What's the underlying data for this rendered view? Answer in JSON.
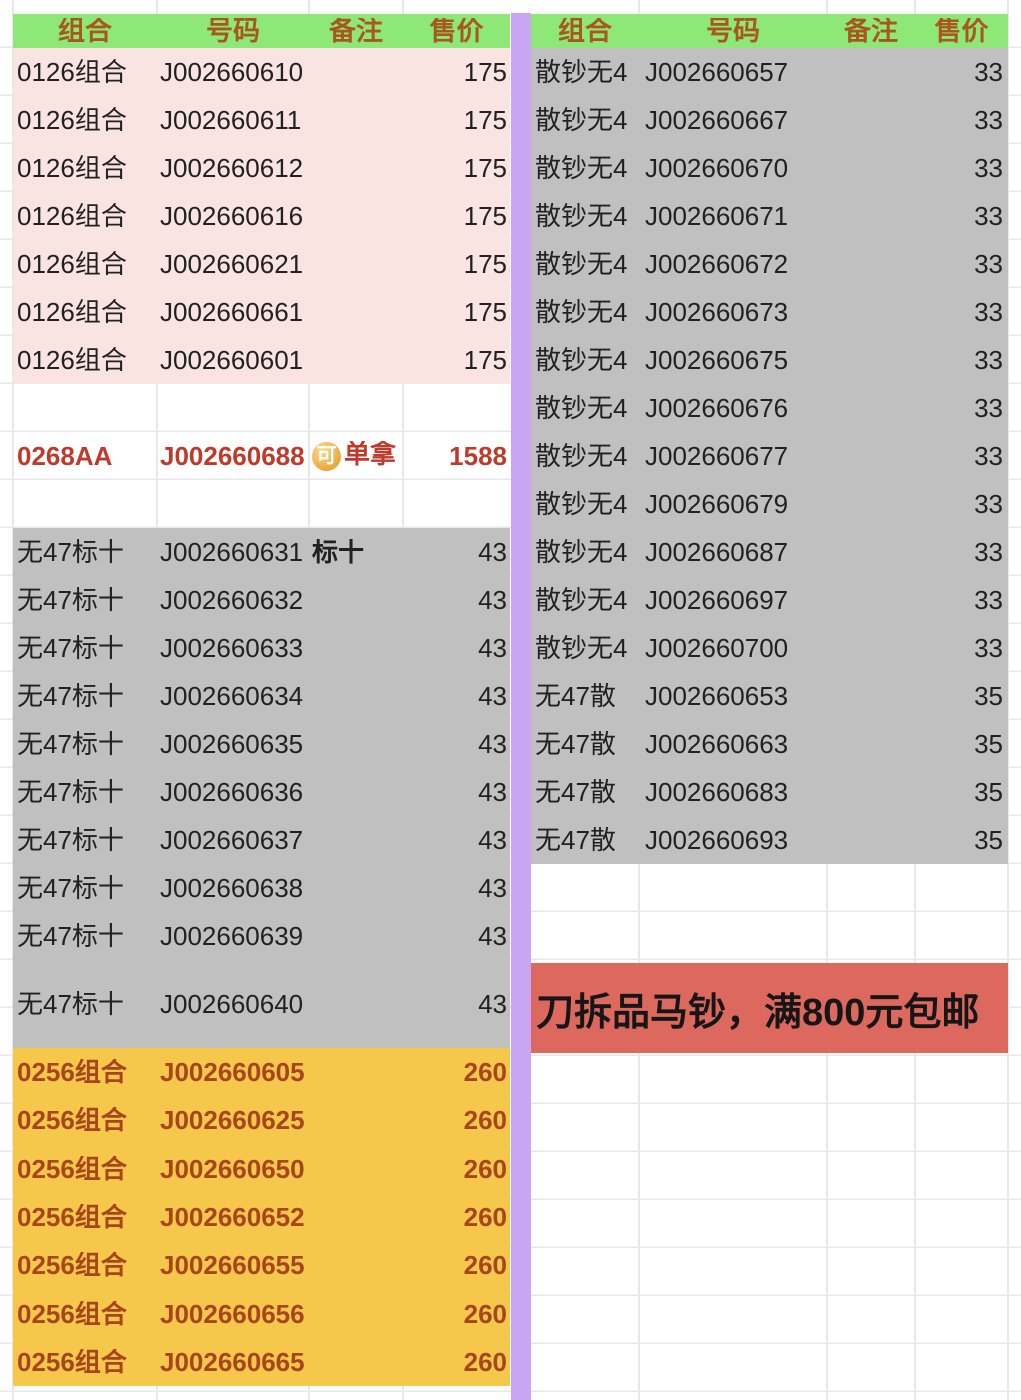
{
  "colors": {
    "green_header": "#8ee878",
    "header_text": "#a8581c",
    "pink_bg": "#f9e4e2",
    "gray_bg": "#c1c0c0",
    "orange_bg": "#f5c74b",
    "orange_text": "#a9451d",
    "featured_red": "#bf3a2b",
    "banner_bg": "#dc685e",
    "divider_purple": "#c9a5f3",
    "body_text": "#212121",
    "gridline": "#e8e8e8"
  },
  "left_table": {
    "headers": [
      "组合",
      "号码",
      "备注",
      "售价"
    ],
    "pink_rows": [
      {
        "combo": "0126组合",
        "code": "J002660610",
        "note": "",
        "price": "175"
      },
      {
        "combo": "0126组合",
        "code": "J002660611",
        "note": "",
        "price": "175"
      },
      {
        "combo": "0126组合",
        "code": "J002660612",
        "note": "",
        "price": "175"
      },
      {
        "combo": "0126组合",
        "code": "J002660616",
        "note": "",
        "price": "175"
      },
      {
        "combo": "0126组合",
        "code": "J002660621",
        "note": "",
        "price": "175"
      },
      {
        "combo": "0126组合",
        "code": "J002660661",
        "note": "",
        "price": "175"
      },
      {
        "combo": "0126组合",
        "code": "J002660601",
        "note": "",
        "price": "175"
      }
    ],
    "featured_rows": [
      {
        "combo": "0268AA",
        "code": "J002660688",
        "badge": "可",
        "note": "单拿",
        "price": "1588"
      }
    ],
    "gray_rows": [
      {
        "combo": "无47标十",
        "code": "J002660631",
        "note": "标十",
        "price": "43"
      },
      {
        "combo": "无47标十",
        "code": "J002660632",
        "note": "",
        "price": "43"
      },
      {
        "combo": "无47标十",
        "code": "J002660633",
        "note": "",
        "price": "43"
      },
      {
        "combo": "无47标十",
        "code": "J002660634",
        "note": "",
        "price": "43"
      },
      {
        "combo": "无47标十",
        "code": "J002660635",
        "note": "",
        "price": "43"
      },
      {
        "combo": "无47标十",
        "code": "J002660636",
        "note": "",
        "price": "43"
      },
      {
        "combo": "无47标十",
        "code": "J002660637",
        "note": "",
        "price": "43"
      },
      {
        "combo": "无47标十",
        "code": "J002660638",
        "note": "",
        "price": "43"
      },
      {
        "combo": "无47标十",
        "code": "J002660639",
        "note": "",
        "price": "43"
      },
      {
        "combo": "无47标十",
        "code": "J002660640",
        "note": "",
        "price": "43",
        "tall": true
      }
    ],
    "orange_rows": [
      {
        "combo": "0256组合",
        "code": "J002660605",
        "note": "",
        "price": "260"
      },
      {
        "combo": "0256组合",
        "code": "J002660625",
        "note": "",
        "price": "260"
      },
      {
        "combo": "0256组合",
        "code": "J002660650",
        "note": "",
        "price": "260"
      },
      {
        "combo": "0256组合",
        "code": "J002660652",
        "note": "",
        "price": "260"
      },
      {
        "combo": "0256组合",
        "code": "J002660655",
        "note": "",
        "price": "260"
      },
      {
        "combo": "0256组合",
        "code": "J002660656",
        "note": "",
        "price": "260"
      },
      {
        "combo": "0256组合",
        "code": "J002660665",
        "note": "",
        "price": "260"
      }
    ]
  },
  "right_table": {
    "headers": [
      "组合",
      "号码",
      "备注",
      "售价"
    ],
    "gray_rows": [
      {
        "combo": "散钞无4",
        "code": "J002660657",
        "note": "",
        "price": "33"
      },
      {
        "combo": "散钞无4",
        "code": "J002660667",
        "note": "",
        "price": "33"
      },
      {
        "combo": "散钞无4",
        "code": "J002660670",
        "note": "",
        "price": "33"
      },
      {
        "combo": "散钞无4",
        "code": "J002660671",
        "note": "",
        "price": "33"
      },
      {
        "combo": "散钞无4",
        "code": "J002660672",
        "note": "",
        "price": "33"
      },
      {
        "combo": "散钞无4",
        "code": "J002660673",
        "note": "",
        "price": "33"
      },
      {
        "combo": "散钞无4",
        "code": "J002660675",
        "note": "",
        "price": "33"
      },
      {
        "combo": "散钞无4",
        "code": "J002660676",
        "note": "",
        "price": "33"
      },
      {
        "combo": "散钞无4",
        "code": "J002660677",
        "note": "",
        "price": "33"
      },
      {
        "combo": "散钞无4",
        "code": "J002660679",
        "note": "",
        "price": "33"
      },
      {
        "combo": "散钞无4",
        "code": "J002660687",
        "note": "",
        "price": "33"
      },
      {
        "combo": "散钞无4",
        "code": "J002660697",
        "note": "",
        "price": "33"
      },
      {
        "combo": "散钞无4",
        "code": "J002660700",
        "note": "",
        "price": "33"
      },
      {
        "combo": "无47散",
        "code": "J002660653",
        "note": "",
        "price": "35"
      },
      {
        "combo": "无47散",
        "code": "J002660663",
        "note": "",
        "price": "35"
      },
      {
        "combo": "无47散",
        "code": "J002660683",
        "note": "",
        "price": "35"
      },
      {
        "combo": "无47散",
        "code": "J002660693",
        "note": "",
        "price": "35"
      }
    ],
    "banner_text": "刀拆品马钞，满800元包邮"
  }
}
